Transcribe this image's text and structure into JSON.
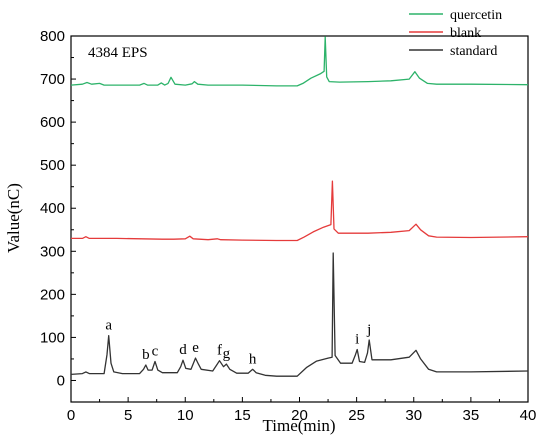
{
  "chart_data": {
    "type": "line",
    "xlabel": "Time(min)",
    "ylabel": "Value(nC)",
    "xlim": [
      0,
      40
    ],
    "ylim": [
      -50,
      800
    ],
    "xticks": [
      "0",
      "5",
      "10",
      "15",
      "20",
      "25",
      "30",
      "35",
      "40"
    ],
    "yticks": [
      "0",
      "100",
      "200",
      "300",
      "400",
      "500",
      "600",
      "700",
      "800"
    ],
    "annotation": "4384 EPS",
    "legend_position": "top-right",
    "grid": false,
    "series": [
      {
        "name": "quercetin",
        "color": "#2db36a",
        "points": [
          [
            0,
            686
          ],
          [
            1.0,
            688
          ],
          [
            1.4,
            692
          ],
          [
            1.8,
            688
          ],
          [
            2.5,
            690
          ],
          [
            2.9,
            686
          ],
          [
            4,
            686
          ],
          [
            6,
            686
          ],
          [
            6.4,
            690
          ],
          [
            6.7,
            686
          ],
          [
            7.6,
            686
          ],
          [
            7.9,
            691
          ],
          [
            8.2,
            686
          ],
          [
            8.5,
            690
          ],
          [
            8.75,
            704
          ],
          [
            9.1,
            688
          ],
          [
            10,
            686
          ],
          [
            10.6,
            689
          ],
          [
            10.8,
            694
          ],
          [
            11.1,
            688
          ],
          [
            12,
            686
          ],
          [
            15,
            686
          ],
          [
            18,
            684
          ],
          [
            19.8,
            684
          ],
          [
            20.3,
            690
          ],
          [
            21,
            702
          ],
          [
            21.8,
            712
          ],
          [
            22.15,
            718
          ],
          [
            22.25,
            798
          ],
          [
            22.38,
            705
          ],
          [
            22.6,
            694
          ],
          [
            23.5,
            693
          ],
          [
            26,
            694
          ],
          [
            28,
            696
          ],
          [
            29.6,
            700
          ],
          [
            30.1,
            717
          ],
          [
            30.5,
            702
          ],
          [
            31.2,
            690
          ],
          [
            32,
            688
          ],
          [
            35,
            688
          ],
          [
            40,
            687
          ]
        ]
      },
      {
        "name": "blank",
        "color": "#e53b3b",
        "points": [
          [
            0,
            330
          ],
          [
            1.0,
            330
          ],
          [
            1.3,
            334
          ],
          [
            1.6,
            330
          ],
          [
            4,
            330
          ],
          [
            8,
            328
          ],
          [
            9,
            328
          ],
          [
            10,
            329
          ],
          [
            10.4,
            335
          ],
          [
            10.7,
            329
          ],
          [
            12,
            327
          ],
          [
            12.8,
            329
          ],
          [
            13.1,
            327
          ],
          [
            15,
            326
          ],
          [
            18,
            325
          ],
          [
            19.8,
            325
          ],
          [
            20.4,
            333
          ],
          [
            21.2,
            345
          ],
          [
            22.1,
            356
          ],
          [
            22.75,
            362
          ],
          [
            22.88,
            463
          ],
          [
            23.02,
            352
          ],
          [
            23.4,
            342
          ],
          [
            26,
            342
          ],
          [
            28,
            344
          ],
          [
            29.6,
            348
          ],
          [
            30.2,
            363
          ],
          [
            30.6,
            350
          ],
          [
            31.3,
            336
          ],
          [
            32,
            333
          ],
          [
            35,
            332
          ],
          [
            40,
            334
          ]
        ]
      },
      {
        "name": "standard",
        "color": "#333333",
        "points": [
          [
            0,
            14
          ],
          [
            1.0,
            16
          ],
          [
            1.3,
            20
          ],
          [
            1.6,
            16
          ],
          [
            2.9,
            16
          ],
          [
            3.15,
            60
          ],
          [
            3.3,
            104
          ],
          [
            3.5,
            40
          ],
          [
            3.75,
            20
          ],
          [
            4.5,
            16
          ],
          [
            6,
            16
          ],
          [
            6.35,
            26
          ],
          [
            6.55,
            36
          ],
          [
            6.75,
            24
          ],
          [
            7.1,
            24
          ],
          [
            7.35,
            44
          ],
          [
            7.6,
            24
          ],
          [
            8,
            18
          ],
          [
            9.3,
            18
          ],
          [
            9.6,
            32
          ],
          [
            9.8,
            47
          ],
          [
            10.05,
            28
          ],
          [
            10.5,
            26
          ],
          [
            10.9,
            52
          ],
          [
            11.15,
            38
          ],
          [
            11.4,
            26
          ],
          [
            12.4,
            22
          ],
          [
            12.75,
            36
          ],
          [
            13.0,
            46
          ],
          [
            13.35,
            32
          ],
          [
            13.6,
            38
          ],
          [
            13.9,
            26
          ],
          [
            14.5,
            17
          ],
          [
            15.5,
            17
          ],
          [
            15.9,
            26
          ],
          [
            16.2,
            18
          ],
          [
            17,
            12
          ],
          [
            18,
            10
          ],
          [
            19.8,
            10
          ],
          [
            20.6,
            30
          ],
          [
            21.5,
            45
          ],
          [
            22.5,
            52
          ],
          [
            22.85,
            54
          ],
          [
            22.95,
            296
          ],
          [
            23.12,
            58
          ],
          [
            23.6,
            40
          ],
          [
            24.6,
            40
          ],
          [
            24.9,
            60
          ],
          [
            25.05,
            72
          ],
          [
            25.25,
            44
          ],
          [
            25.7,
            42
          ],
          [
            25.95,
            64
          ],
          [
            26.1,
            94
          ],
          [
            26.35,
            48
          ],
          [
            28,
            48
          ],
          [
            29.6,
            54
          ],
          [
            30.2,
            70
          ],
          [
            30.6,
            50
          ],
          [
            31.3,
            26
          ],
          [
            32,
            20
          ],
          [
            35,
            20
          ],
          [
            40,
            22
          ]
        ]
      }
    ],
    "peaks": [
      {
        "label": "a",
        "x": 3.3,
        "y": 104
      },
      {
        "label": "b",
        "x": 6.55,
        "y": 36
      },
      {
        "label": "c",
        "x": 7.35,
        "y": 44
      },
      {
        "label": "d",
        "x": 9.8,
        "y": 47
      },
      {
        "label": "e",
        "x": 10.9,
        "y": 52
      },
      {
        "label": "f",
        "x": 13.0,
        "y": 46
      },
      {
        "label": "g",
        "x": 13.6,
        "y": 38
      },
      {
        "label": "h",
        "x": 15.9,
        "y": 26
      },
      {
        "label": "i",
        "x": 25.05,
        "y": 72
      },
      {
        "label": "j",
        "x": 26.1,
        "y": 94
      }
    ]
  }
}
